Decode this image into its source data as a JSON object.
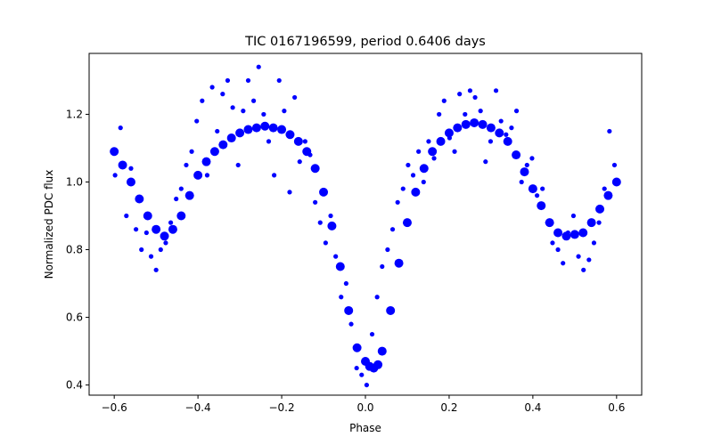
{
  "chart_data": {
    "type": "scatter",
    "title": "TIC 0167196599, period 0.6406 days",
    "xlabel": "Phase",
    "ylabel": "Normalized PDC flux",
    "xlim": [
      -0.66,
      0.66
    ],
    "ylim": [
      0.37,
      1.38
    ],
    "xticks": [
      -0.6,
      -0.4,
      -0.2,
      0.0,
      0.2,
      0.4,
      0.6
    ],
    "xtick_labels": [
      "−0.6",
      "−0.4",
      "−0.2",
      "0.0",
      "0.2",
      "0.4",
      "0.6"
    ],
    "yticks": [
      0.4,
      0.6,
      0.8,
      1.0,
      1.2
    ],
    "ytick_labels": [
      "0.4",
      "0.6",
      "0.8",
      "1.0",
      "1.2"
    ],
    "grid": false,
    "marker_color": "#0000ff",
    "series": [
      {
        "x": [
          -0.6,
          -0.58,
          -0.56,
          -0.54,
          -0.52,
          -0.5,
          -0.48,
          -0.46,
          -0.44,
          -0.42,
          -0.4,
          -0.38,
          -0.36,
          -0.34,
          -0.32,
          -0.3,
          -0.28,
          -0.26,
          -0.24,
          -0.22,
          -0.2,
          -0.18,
          -0.16,
          -0.14,
          -0.12,
          -0.1,
          -0.08,
          -0.06,
          -0.04,
          -0.02,
          0.0,
          0.01,
          0.02,
          0.03,
          0.04,
          0.06,
          0.08,
          0.1,
          0.12,
          0.14,
          0.16,
          0.18,
          0.2,
          0.22,
          0.24,
          0.26,
          0.28,
          0.3,
          0.32,
          0.34,
          0.36,
          0.38,
          0.4,
          0.42,
          0.44,
          0.46,
          0.48,
          0.5,
          0.52,
          0.54,
          0.56,
          0.58,
          0.6
        ],
        "y": [
          1.09,
          1.05,
          1.0,
          0.95,
          0.9,
          0.86,
          0.84,
          0.86,
          0.9,
          0.96,
          1.02,
          1.06,
          1.09,
          1.11,
          1.13,
          1.145,
          1.155,
          1.16,
          1.165,
          1.16,
          1.155,
          1.14,
          1.12,
          1.09,
          1.04,
          0.97,
          0.87,
          0.75,
          0.62,
          0.51,
          0.47,
          0.455,
          0.45,
          0.46,
          0.5,
          0.62,
          0.76,
          0.88,
          0.97,
          1.04,
          1.09,
          1.12,
          1.145,
          1.16,
          1.17,
          1.175,
          1.17,
          1.16,
          1.145,
          1.12,
          1.08,
          1.03,
          0.98,
          0.93,
          0.88,
          0.85,
          0.84,
          0.845,
          0.85,
          0.88,
          0.92,
          0.96,
          1.0
        ]
      },
      {
        "x": [
          -0.598,
          -0.585,
          -0.571,
          -0.56,
          -0.548,
          -0.535,
          -0.523,
          -0.512,
          -0.5,
          -0.489,
          -0.477,
          -0.465,
          -0.452,
          -0.44,
          -0.428,
          -0.415,
          -0.403,
          -0.39,
          -0.378,
          -0.366,
          -0.354,
          -0.341,
          -0.329,
          -0.317,
          -0.304,
          -0.292,
          -0.28,
          -0.267,
          -0.255,
          -0.243,
          -0.231,
          -0.218,
          -0.206,
          -0.194,
          -0.181,
          -0.169,
          -0.157,
          -0.144,
          -0.132,
          -0.12,
          -0.108,
          -0.095,
          -0.083,
          -0.071,
          -0.058,
          -0.046,
          -0.034,
          -0.021,
          -0.009,
          0.003,
          0.016,
          0.028,
          0.04,
          0.053,
          0.065,
          0.077,
          0.09,
          0.102,
          0.114,
          0.127,
          0.139,
          0.151,
          0.164,
          0.176,
          0.188,
          0.201,
          0.213,
          0.225,
          0.238,
          0.25,
          0.262,
          0.275,
          0.287,
          0.299,
          0.312,
          0.324,
          0.336,
          0.349,
          0.361,
          0.373,
          0.386,
          0.398,
          0.41,
          0.423,
          0.435,
          0.447,
          0.46,
          0.472,
          0.484,
          0.497,
          0.509,
          0.521,
          0.534,
          0.546,
          0.558,
          0.571,
          0.583,
          0.595
        ],
        "y": [
          1.02,
          1.16,
          0.9,
          1.04,
          0.86,
          0.8,
          0.85,
          0.78,
          0.74,
          0.8,
          0.82,
          0.88,
          0.95,
          0.98,
          1.05,
          1.09,
          1.18,
          1.24,
          1.02,
          1.28,
          1.15,
          1.26,
          1.3,
          1.22,
          1.05,
          1.21,
          1.3,
          1.24,
          1.34,
          1.2,
          1.12,
          1.02,
          1.3,
          1.21,
          0.97,
          1.25,
          1.06,
          1.12,
          1.08,
          0.94,
          0.88,
          0.82,
          0.9,
          0.78,
          0.66,
          0.7,
          0.58,
          0.45,
          0.43,
          0.4,
          0.55,
          0.66,
          0.75,
          0.8,
          0.86,
          0.94,
          0.98,
          1.05,
          1.02,
          1.09,
          1.0,
          1.12,
          1.07,
          1.2,
          1.24,
          1.13,
          1.09,
          1.26,
          1.2,
          1.27,
          1.25,
          1.21,
          1.06,
          1.12,
          1.27,
          1.18,
          1.14,
          1.16,
          1.21,
          1.0,
          1.05,
          1.07,
          0.96,
          0.98,
          0.88,
          0.82,
          0.8,
          0.76,
          0.85,
          0.9,
          0.78,
          0.74,
          0.77,
          0.82,
          0.88,
          0.98,
          1.15,
          1.05
        ]
      }
    ]
  }
}
